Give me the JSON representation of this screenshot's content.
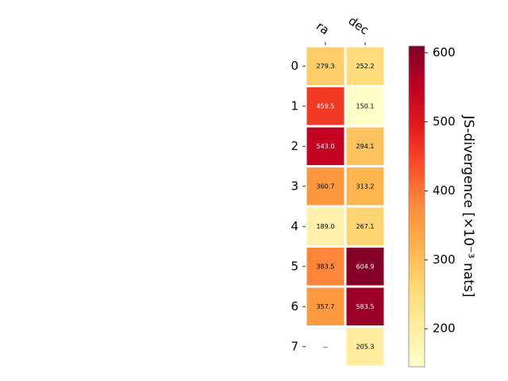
{
  "chart_data": {
    "type": "heatmap",
    "columns": [
      "ra",
      "dec"
    ],
    "rows": [
      "0",
      "1",
      "2",
      "3",
      "4",
      "5",
      "6",
      "7"
    ],
    "values": [
      [
        279.3,
        252.2
      ],
      [
        459.5,
        150.1
      ],
      [
        543.0,
        294.1
      ],
      [
        360.7,
        313.2
      ],
      [
        189.0,
        267.1
      ],
      [
        383.5,
        604.9
      ],
      [
        357.7,
        583.5
      ],
      [
        null,
        205.3
      ]
    ],
    "cell_labels": [
      [
        "279.3",
        "252.2"
      ],
      [
        "459.5",
        "150.1"
      ],
      [
        "543.0",
        "294.1"
      ],
      [
        "360.7",
        "313.2"
      ],
      [
        "189.0",
        "267.1"
      ],
      [
        "383.5",
        "604.9"
      ],
      [
        "357.7",
        "583.5"
      ],
      [
        "--",
        "205.3"
      ]
    ],
    "colorbar": {
      "label": "JS-divergence [×10⁻³ nats]",
      "range": [
        145,
        610
      ],
      "ticks": [
        200,
        300,
        400,
        500,
        600
      ],
      "tick_labels": [
        "200",
        "300",
        "400",
        "500",
        "600"
      ],
      "colormap": "YlOrRd"
    },
    "missing_value_label": "--",
    "grid": false
  }
}
